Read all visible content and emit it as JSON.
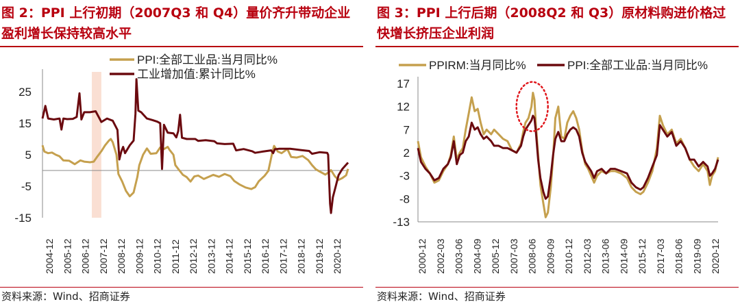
{
  "panels": [
    {
      "title": "图 2：PPI 上行初期（2007Q3 和 Q4）量价齐升带动企业盈利增长保持较高水平",
      "source": "资料来源：Wind、招商证券"
    },
    {
      "title": "图 3：PPI 上行后期（2008Q2 和 Q3）原材料购进价格过快增长挤压企业利润",
      "source": "资料来源：Wind、招商证券"
    }
  ],
  "colors": {
    "gold": "#C5A04E",
    "maroon": "#6B0A0F",
    "highlight": "#F9D9CB",
    "accent": "#B8000F",
    "circle": "#E0161B"
  },
  "chart_data": [
    {
      "type": "line",
      "title": "",
      "x_tick_labels": [
        "2004-12",
        "2005-12",
        "2006-12",
        "2007-12",
        "2008-12",
        "2009-12",
        "2010-12",
        "2011-12",
        "2012-12",
        "2013-12",
        "2014-12",
        "2015-12",
        "2016-12",
        "2017-12",
        "2018-12",
        "2019-12",
        "2020-12"
      ],
      "x_range": [
        2004.9,
        2021.0
      ],
      "y_ticks": [
        25,
        15,
        5,
        -5,
        -15
      ],
      "ylim": [
        -15,
        30
      ],
      "legend": "top",
      "highlight_x": [
        2007.5,
        2008.0
      ],
      "series": [
        {
          "name": "PPI:全部工业品:当月同比%",
          "color": "gold",
          "x": [
            2004.9,
            2005.0,
            2005.2,
            2005.4,
            2005.6,
            2005.8,
            2006.0,
            2006.3,
            2006.6,
            2006.9,
            2007.1,
            2007.4,
            2007.6,
            2007.8,
            2008.0,
            2008.2,
            2008.4,
            2008.5,
            2008.6,
            2008.8,
            2008.9,
            2009.1,
            2009.3,
            2009.5,
            2009.7,
            2009.9,
            2010.0,
            2010.2,
            2010.4,
            2010.6,
            2010.9,
            2011.1,
            2011.3,
            2011.5,
            2011.6,
            2011.8,
            2011.9,
            2012.1,
            2012.3,
            2012.5,
            2012.7,
            2012.9,
            2013.1,
            2013.4,
            2013.7,
            2013.9,
            2014.2,
            2014.5,
            2014.8,
            2015.0,
            2015.3,
            2015.6,
            2015.9,
            2016.1,
            2016.3,
            2016.6,
            2016.8,
            2017.0,
            2017.1,
            2017.3,
            2017.5,
            2017.8,
            2018.0,
            2018.3,
            2018.6,
            2018.9,
            2019.1,
            2019.3,
            2019.5,
            2019.8,
            2020.0,
            2020.1,
            2020.3,
            2020.5,
            2020.7,
            2020.9,
            2021.0
          ],
          "y": [
            8.0,
            6.0,
            5.5,
            5.7,
            5.0,
            4.5,
            3.2,
            3.1,
            2.0,
            3.2,
            2.8,
            2.6,
            2.8,
            4.5,
            6.1,
            8.0,
            9.5,
            10.0,
            9.0,
            5.0,
            -1.1,
            -3.5,
            -6.5,
            -8.2,
            -7.0,
            -2.0,
            1.7,
            5.0,
            7.0,
            5.3,
            5.5,
            7.3,
            6.8,
            7.5,
            6.5,
            5.0,
            1.7,
            0.1,
            -1.4,
            -2.1,
            -3.5,
            -1.9,
            -1.6,
            -2.7,
            -1.9,
            -1.4,
            -2.0,
            -1.1,
            -1.8,
            -3.3,
            -4.5,
            -5.4,
            -5.9,
            -5.3,
            -3.4,
            -1.7,
            -0.1,
            5.5,
            7.8,
            6.0,
            5.5,
            6.8,
            4.3,
            4.1,
            4.6,
            3.3,
            1.7,
            0.4,
            -0.3,
            -1.3,
            -0.5,
            0.1,
            -1.8,
            -3.0,
            -2.4,
            -1.5,
            0.5
          ]
        },
        {
          "name": "工业增加值:累计同比%",
          "color": "maroon",
          "x": [
            2004.9,
            2005.05,
            2005.2,
            2005.5,
            2005.8,
            2005.9,
            2006.0,
            2006.2,
            2006.5,
            2006.7,
            2006.85,
            2006.95,
            2007.1,
            2007.4,
            2007.7,
            2007.95,
            2008.0,
            2008.3,
            2008.6,
            2008.85,
            2008.95,
            2009.05,
            2009.15,
            2009.25,
            2009.5,
            2009.7,
            2009.8,
            2009.85,
            2009.95,
            2010.1,
            2010.4,
            2010.7,
            2010.95,
            2011.1,
            2011.2,
            2011.3,
            2011.5,
            2011.8,
            2011.95,
            2012.05,
            2012.15,
            2012.25,
            2012.5,
            2012.95,
            2013.1,
            2013.5,
            2013.95,
            2014.1,
            2014.5,
            2014.95,
            2015.1,
            2015.5,
            2015.95,
            2016.1,
            2016.5,
            2016.95,
            2017.05,
            2017.15,
            2017.25,
            2017.35,
            2017.6,
            2017.95,
            2018.1,
            2018.5,
            2018.95,
            2019.1,
            2019.5,
            2019.9,
            2019.95,
            2020.05,
            2020.1,
            2020.2,
            2020.35,
            2020.5,
            2020.7,
            2020.85,
            2021.0
          ],
          "y": [
            16.5,
            20.5,
            16.5,
            16.2,
            16.5,
            13.0,
            16.5,
            16.3,
            16.4,
            17.0,
            24.5,
            16.2,
            18.5,
            18.5,
            18.8,
            16.0,
            15.4,
            16.5,
            15.8,
            12.9,
            3.5,
            6.0,
            7.5,
            5.5,
            8.0,
            9.5,
            18.0,
            29.0,
            19.0,
            18.5,
            16.5,
            16.0,
            15.5,
            15.0,
            0.5,
            14.5,
            12.0,
            11.8,
            10.5,
            12.5,
            17.7,
            10.4,
            10.0,
            10.0,
            9.4,
            9.6,
            9.3,
            8.6,
            8.4,
            8.5,
            6.4,
            6.8,
            6.1,
            5.6,
            6.0,
            6.4,
            5.5,
            6.8,
            6.8,
            6.9,
            6.9,
            6.9,
            6.8,
            6.5,
            6.2,
            5.3,
            5.8,
            5.6,
            5.0,
            -10.5,
            -13.5,
            -8.5,
            -5.0,
            -1.5,
            0.5,
            1.5,
            2.5
          ]
        }
      ]
    },
    {
      "type": "line",
      "title": "",
      "x_tick_labels": [
        "2000-12",
        "2002-03",
        "2003-06",
        "2004-09",
        "2005-12",
        "2007-03",
        "2008-06",
        "2009-09",
        "2010-12",
        "2012-03",
        "2013-06",
        "2014-09",
        "2015-12",
        "2017-03",
        "2018-06",
        "2019-09",
        "2020-12"
      ],
      "x_range": [
        2000.9,
        2021.0
      ],
      "y_ticks": [
        17,
        12,
        7,
        2,
        -3,
        -8,
        -13
      ],
      "ylim": [
        -13,
        17
      ],
      "legend": "top",
      "annotation": "dotted ellipse around 2008Q2–Q3 peak",
      "series": [
        {
          "name": "PPIRM:当月同比%",
          "color": "gold",
          "x": [
            2000.9,
            2001.1,
            2001.4,
            2001.7,
            2002.0,
            2002.3,
            2002.6,
            2002.9,
            2003.1,
            2003.3,
            2003.5,
            2003.7,
            2003.9,
            2004.1,
            2004.3,
            2004.5,
            2004.7,
            2004.9,
            2005.1,
            2005.3,
            2005.5,
            2005.8,
            2006.0,
            2006.3,
            2006.6,
            2006.9,
            2007.2,
            2007.5,
            2007.8,
            2007.95,
            2008.1,
            2008.3,
            2008.5,
            2008.6,
            2008.7,
            2008.8,
            2008.95,
            2009.1,
            2009.3,
            2009.45,
            2009.6,
            2009.8,
            2009.95,
            2010.1,
            2010.3,
            2010.5,
            2010.7,
            2010.9,
            2011.1,
            2011.3,
            2011.5,
            2011.7,
            2011.9,
            2012.1,
            2012.3,
            2012.5,
            2012.7,
            2012.9,
            2013.2,
            2013.5,
            2013.8,
            2014.1,
            2014.5,
            2014.9,
            2015.2,
            2015.5,
            2015.8,
            2016.0,
            2016.3,
            2016.6,
            2016.9,
            2017.1,
            2017.3,
            2017.6,
            2017.9,
            2018.2,
            2018.5,
            2018.8,
            2019.1,
            2019.4,
            2019.7,
            2020.0,
            2020.3,
            2020.45,
            2020.6,
            2020.8,
            2021.0
          ],
          "y": [
            4.5,
            1.0,
            -1.0,
            -2.5,
            -4.5,
            -4.0,
            -2.0,
            -0.5,
            1.5,
            5.5,
            0.5,
            2.0,
            3.0,
            7.0,
            10.5,
            14.0,
            11.0,
            11.5,
            8.5,
            6.0,
            7.0,
            6.0,
            7.0,
            6.0,
            5.0,
            4.5,
            2.5,
            2.0,
            4.0,
            6.5,
            8.5,
            9.5,
            12.0,
            15.0,
            13.5,
            8.0,
            1.5,
            -5.0,
            -9.0,
            -12.0,
            -11.0,
            -5.5,
            1.0,
            9.5,
            12.0,
            5.5,
            5.0,
            8.5,
            10.0,
            11.0,
            9.5,
            7.0,
            2.5,
            -0.5,
            -1.5,
            -3.0,
            -4.5,
            -3.0,
            -2.0,
            -2.5,
            -2.0,
            -2.0,
            -2.5,
            -3.5,
            -5.5,
            -6.5,
            -7.0,
            -6.5,
            -4.5,
            -2.0,
            3.0,
            10.0,
            8.0,
            6.0,
            7.0,
            4.0,
            5.0,
            3.0,
            0.5,
            -1.0,
            -2.0,
            -0.5,
            -2.0,
            -5.0,
            -3.0,
            -2.0,
            1.0
          ]
        },
        {
          "name": "PPI:全部工业品:当月同比%",
          "color": "maroon",
          "x": [
            2000.9,
            2001.1,
            2001.4,
            2001.7,
            2002.0,
            2002.3,
            2002.6,
            2002.9,
            2003.1,
            2003.3,
            2003.5,
            2003.7,
            2003.9,
            2004.1,
            2004.3,
            2004.5,
            2004.7,
            2004.9,
            2005.1,
            2005.3,
            2005.5,
            2005.8,
            2006.0,
            2006.3,
            2006.6,
            2006.9,
            2007.2,
            2007.5,
            2007.8,
            2007.95,
            2008.1,
            2008.3,
            2008.5,
            2008.6,
            2008.7,
            2008.8,
            2008.95,
            2009.1,
            2009.3,
            2009.45,
            2009.6,
            2009.8,
            2009.95,
            2010.1,
            2010.3,
            2010.5,
            2010.7,
            2010.9,
            2011.1,
            2011.3,
            2011.5,
            2011.7,
            2011.9,
            2012.1,
            2012.3,
            2012.5,
            2012.7,
            2012.9,
            2013.2,
            2013.5,
            2013.8,
            2014.1,
            2014.5,
            2014.9,
            2015.2,
            2015.5,
            2015.8,
            2016.0,
            2016.3,
            2016.6,
            2016.9,
            2017.1,
            2017.3,
            2017.6,
            2017.9,
            2018.2,
            2018.5,
            2018.8,
            2019.1,
            2019.4,
            2019.7,
            2020.0,
            2020.3,
            2020.45,
            2020.6,
            2020.8,
            2021.0
          ],
          "y": [
            3.0,
            0.0,
            -1.5,
            -2.5,
            -4.0,
            -3.5,
            -1.5,
            -0.5,
            1.0,
            4.5,
            -0.5,
            1.5,
            2.0,
            4.5,
            5.5,
            8.5,
            7.0,
            7.5,
            6.0,
            5.0,
            5.5,
            4.5,
            3.5,
            3.5,
            3.0,
            3.0,
            2.5,
            2.0,
            3.5,
            5.5,
            7.0,
            8.0,
            9.0,
            10.0,
            9.5,
            6.5,
            0.5,
            -3.5,
            -6.5,
            -8.0,
            -7.5,
            -3.0,
            1.5,
            5.0,
            6.5,
            4.5,
            4.5,
            6.0,
            7.0,
            7.5,
            7.0,
            5.5,
            2.0,
            0.0,
            -1.0,
            -2.0,
            -3.5,
            -2.0,
            -1.5,
            -2.5,
            -1.5,
            -1.5,
            -2.0,
            -2.5,
            -4.5,
            -5.5,
            -6.0,
            -5.5,
            -3.5,
            -1.0,
            1.5,
            8.0,
            7.0,
            5.5,
            6.5,
            3.5,
            4.5,
            3.0,
            0.5,
            0.5,
            -1.0,
            0.0,
            -1.0,
            -3.0,
            -2.5,
            -1.5,
            0.5
          ]
        }
      ]
    }
  ]
}
